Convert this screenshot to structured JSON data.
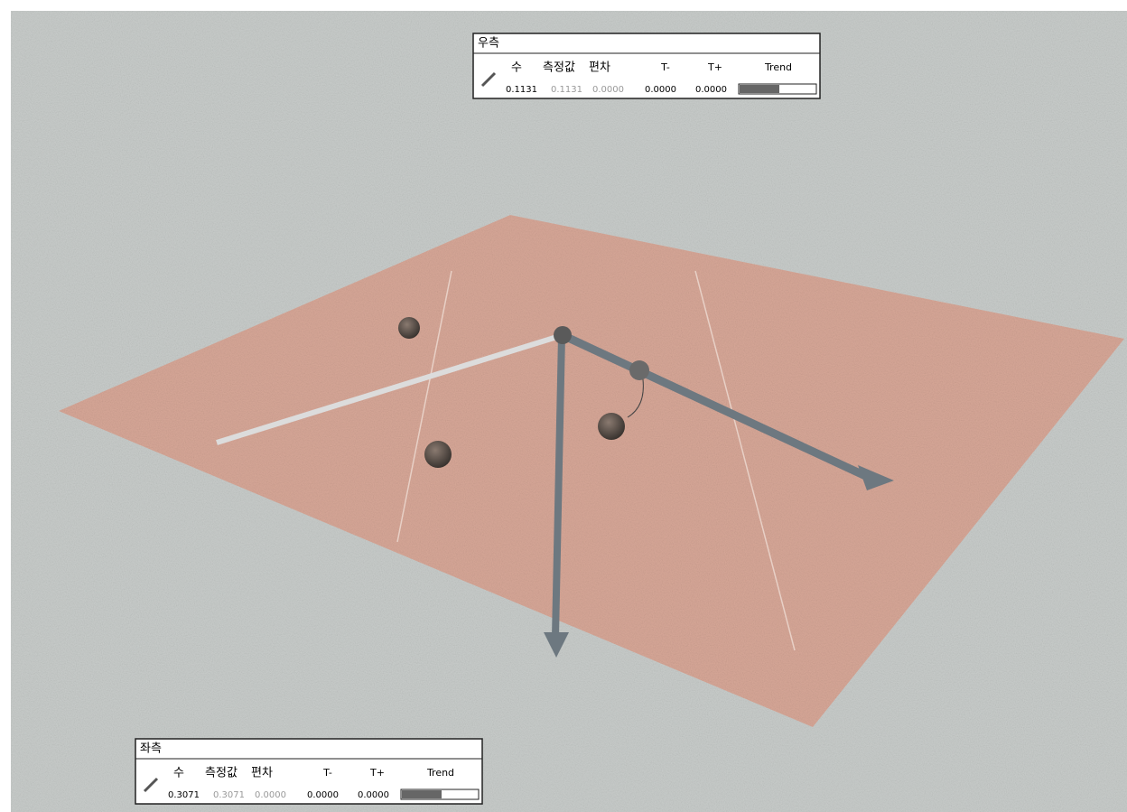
{
  "panels": [
    {
      "title": "우측",
      "headers": [
        "수",
        "측정값",
        "편차",
        "T-",
        "T+",
        "Trend"
      ],
      "values": [
        "0.1131",
        "0.1131",
        "0.0000",
        "0.0000",
        "0.0000"
      ]
    },
    {
      "title": "좌측",
      "headers": [
        "수",
        "측정값",
        "편차",
        "T-",
        "T+",
        "Trend"
      ],
      "values": [
        "0.3071",
        "0.3071",
        "0.0000",
        "0.0000",
        "0.0000"
      ]
    }
  ]
}
